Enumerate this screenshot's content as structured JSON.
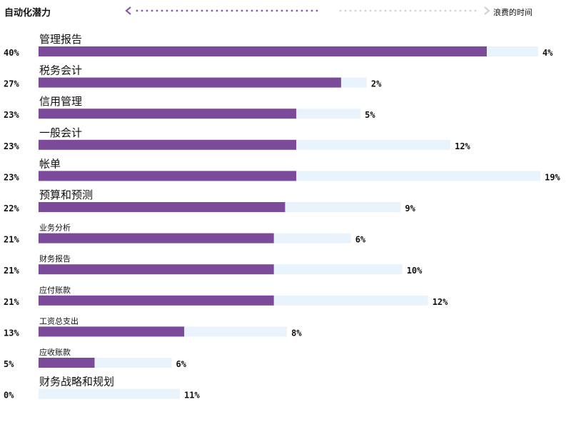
{
  "header": {
    "left_label": "自动化潜力",
    "right_label": "浪费的时间"
  },
  "colors": {
    "automation": "#7b4a9a",
    "wasted": "#e8f3fb",
    "arrow_left": "#8a5aab",
    "arrow_right": "#cfd3d8",
    "text": "#111111"
  },
  "chart_data": {
    "type": "bar",
    "orientation": "horizontal",
    "series": [
      {
        "name": "自动化潜力",
        "values": [
          40,
          27,
          23,
          23,
          23,
          22,
          21,
          21,
          21,
          13,
          5,
          0
        ]
      },
      {
        "name": "浪费的时间",
        "values": [
          4,
          2,
          5,
          12,
          19,
          9,
          6,
          10,
          12,
          8,
          6,
          11
        ]
      }
    ],
    "categories": [
      "管理报告",
      "税务会计",
      "信用管理",
      "一般会计",
      "帐单",
      "预算和预测",
      "业务分析",
      "财务报告",
      "应付账款",
      "工资总支出",
      "应收账款",
      "财务战略和规划"
    ],
    "automation_labels": [
      "40%",
      "27%",
      "23%",
      "23%",
      "23%",
      "22%",
      "21%",
      "21%",
      "21%",
      "13%",
      "5%",
      "0%"
    ],
    "wasted_labels": [
      "4%",
      "2%",
      "5%",
      "12%",
      "19%",
      "9%",
      "6%",
      "10%",
      "12%",
      "8%",
      "6%",
      "11%"
    ]
  }
}
